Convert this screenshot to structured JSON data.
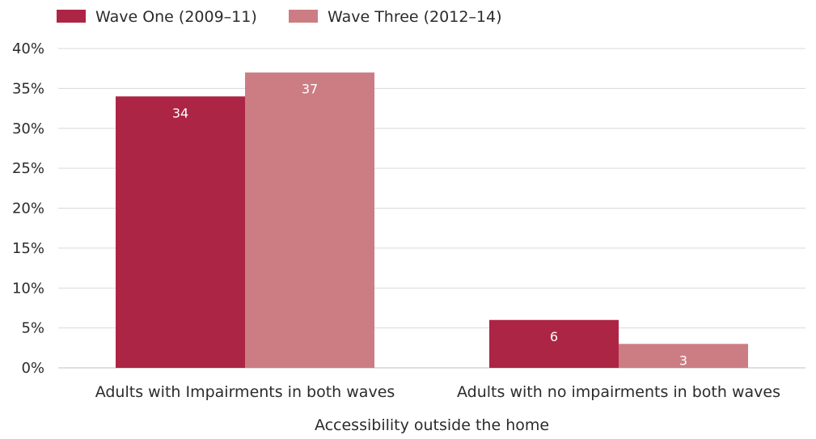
{
  "chart_data": {
    "type": "bar",
    "title": "",
    "xlabel": "Accessibility outside the home",
    "ylabel": "",
    "categories": [
      "Adults with Impairments in both waves",
      "Adults with no impairments in both waves"
    ],
    "series": [
      {
        "name": "Wave One (2009–11)",
        "values": [
          34,
          6
        ],
        "labels": [
          "34",
          "6"
        ],
        "color": "#ad2545"
      },
      {
        "name": "Wave Three (2012–14)",
        "values": [
          37,
          3
        ],
        "labels": [
          "37",
          "3"
        ],
        "color": "#cc7d83"
      }
    ],
    "ylim": [
      0,
      40
    ],
    "yticks": [
      "0%",
      "5%",
      "10%",
      "15%",
      "20%",
      "25%",
      "30%",
      "35%",
      "40%"
    ],
    "grid": true,
    "legend_position": "top-left"
  }
}
